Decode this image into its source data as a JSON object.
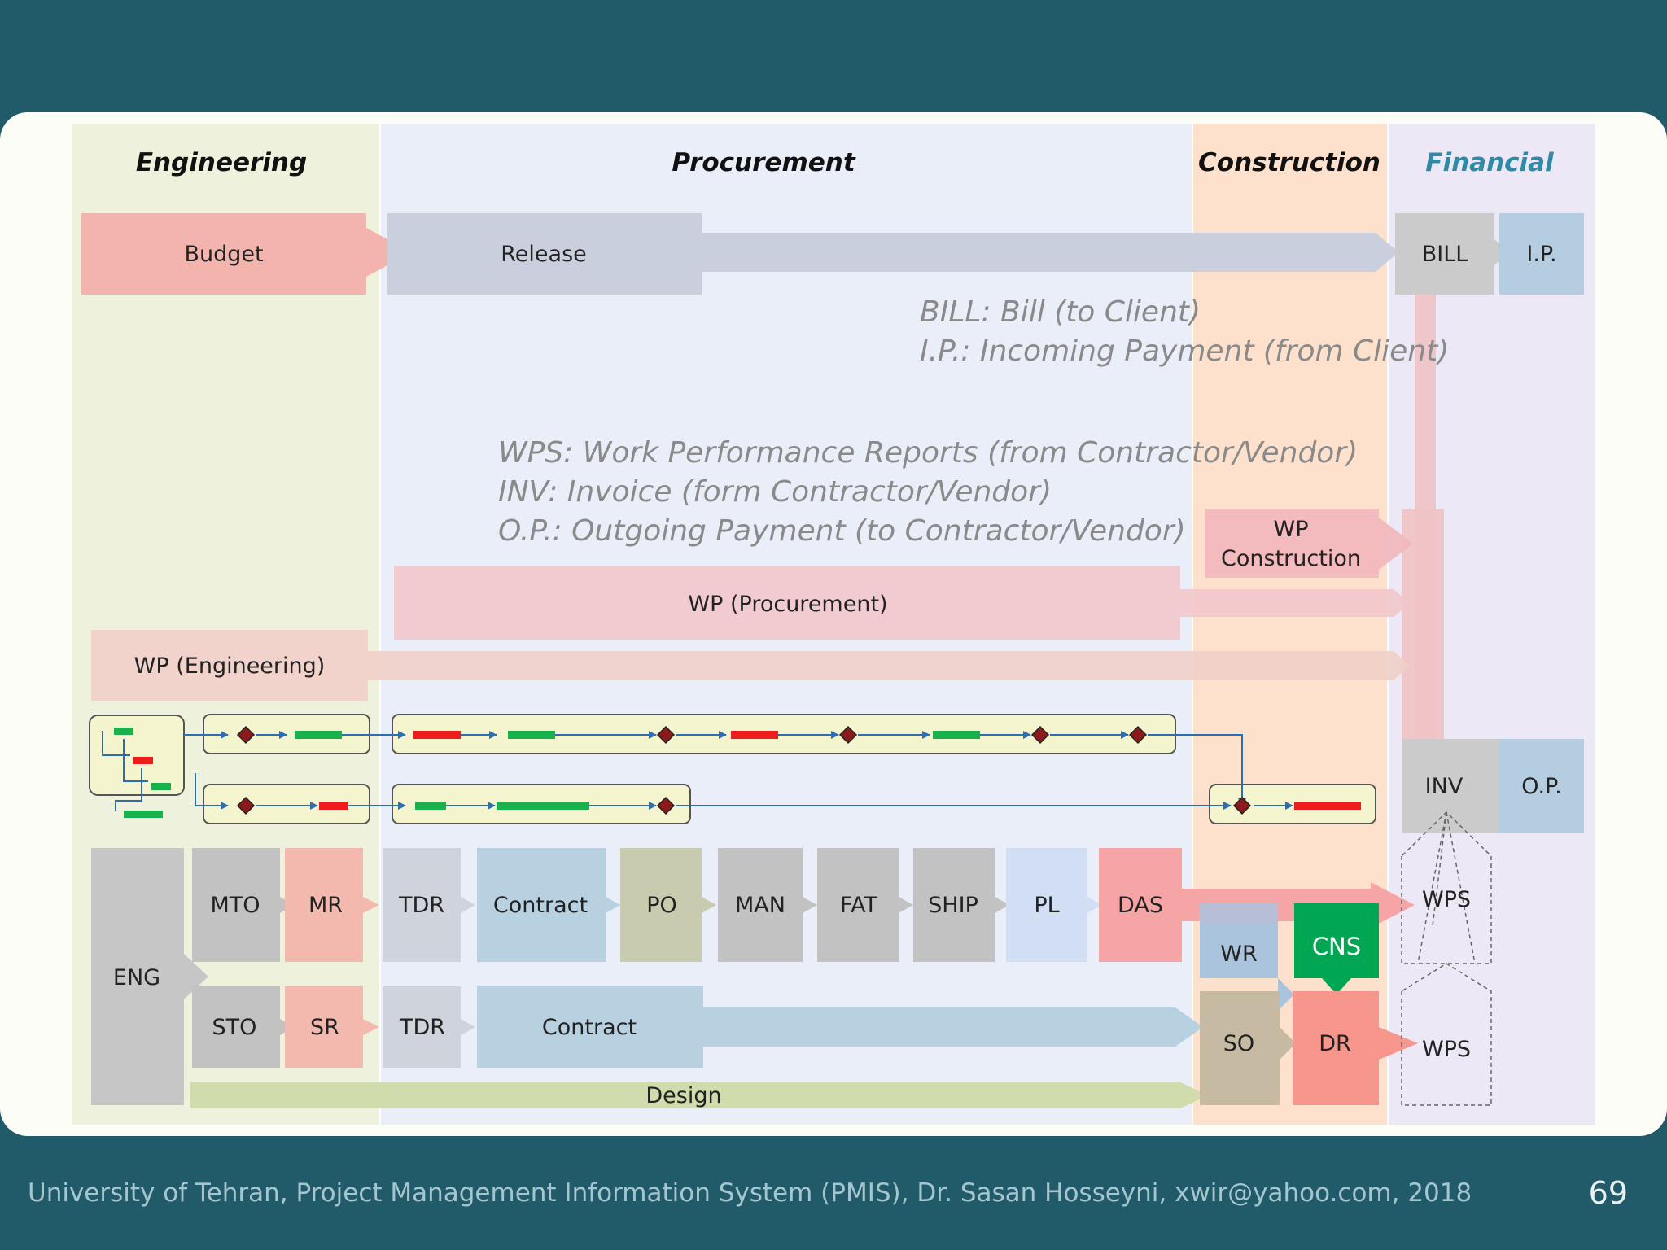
{
  "headers": {
    "engineering": "Engineering",
    "procurement": "Procurement",
    "construction": "Construction",
    "financial": "Financial"
  },
  "top_flow": {
    "budget": "Budget",
    "release": "Release",
    "bill": "BILL",
    "ip": "I.P."
  },
  "notes": {
    "bill": "BILL: Bill (to Client)",
    "ip": "I.P.: Incoming Payment (from Client)",
    "wps": "WPS: Work Performance Reports (from Contractor/Vendor)",
    "inv": "INV: Invoice (form Contractor/Vendor)",
    "op": "O.P.: Outgoing Payment (to Contractor/Vendor)"
  },
  "work_packages": {
    "construction_line1": "WP",
    "construction_line2": "Construction",
    "procurement": "WP (Procurement)",
    "engineering": "WP (Engineering)"
  },
  "payments": {
    "inv": "INV",
    "op": "O.P."
  },
  "process_row1": [
    "MTO",
    "MR",
    "TDR",
    "Contract",
    "PO",
    "MAN",
    "FAT",
    "SHIP",
    "PL",
    "DAS"
  ],
  "process_row2": [
    "STO",
    "SR",
    "TDR",
    "Contract"
  ],
  "construction_blocks": {
    "wr": "WR",
    "cns": "CNS",
    "so": "SO",
    "dr": "DR"
  },
  "eng": "ENG",
  "design": "Design",
  "wps_labels": [
    "WPS",
    "WPS"
  ],
  "colors": {
    "background": "#215a68",
    "financial_header": "#2e8aa6",
    "task_red": "#ee1c1c",
    "task_green": "#18b14b",
    "link_blue": "#2e6db4",
    "milestone": "#8b1a1a",
    "cns": "#00a651"
  },
  "footer": {
    "text": "University of Tehran, Project Management Information System (PMIS), Dr. Sasan Hosseyni, xwir@yahoo.com, 2018",
    "page": "69"
  }
}
